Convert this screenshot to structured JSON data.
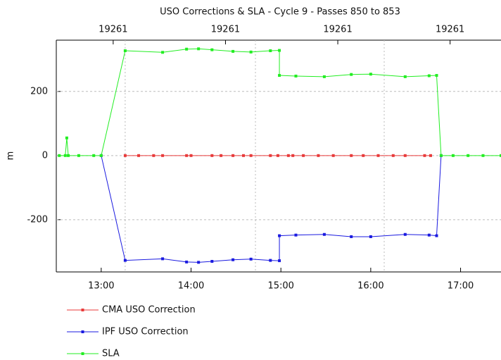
{
  "chart_data": {
    "type": "line",
    "title": "USO Corrections & SLA - Cycle 9 - Passes 850 to 853",
    "y_label": "m",
    "xlim": [
      "12:30",
      "17:27"
    ],
    "xticks": [
      "13:00",
      "14:00",
      "15:00",
      "16:00",
      "17:00"
    ],
    "x2ticks": [
      {
        "value": "13:08",
        "label": "19261"
      },
      {
        "value": "14:23",
        "label": "19261"
      },
      {
        "value": "15:38",
        "label": "19261"
      },
      {
        "value": "16:53",
        "label": "19261"
      }
    ],
    "xgrid": [
      "13:16",
      "14:43",
      "16:09"
    ],
    "ylim": [
      -363,
      360
    ],
    "yticks": [
      -200,
      0,
      200
    ],
    "grid": true,
    "legend": "bottom",
    "series": [
      {
        "name": "CMA USO Correction",
        "color": "#e83a3a",
        "x": [
          "13:16",
          "13:25",
          "13:35",
          "13:41",
          "13:57",
          "14:00",
          "14:14",
          "14:20",
          "14:28",
          "14:35",
          "14:40",
          "14:53",
          "14:58",
          "15:05",
          "15:08",
          "15:15",
          "15:25",
          "15:35",
          "15:47",
          "15:55",
          "16:05",
          "16:15",
          "16:23",
          "16:36",
          "16:40"
        ],
        "values": [
          0,
          0,
          0,
          0,
          0,
          0,
          0,
          0,
          0,
          0,
          0,
          0,
          0,
          0,
          0,
          0,
          0,
          0,
          0,
          0,
          0,
          0,
          0,
          0,
          0
        ]
      },
      {
        "name": "IPF USO Correction",
        "color": "#1a1ae0",
        "x": [
          "13:00",
          "13:16",
          "13:41",
          "13:57",
          "14:05",
          "14:14",
          "14:28",
          "14:40",
          "14:53",
          "14:59",
          "14:59",
          "15:10",
          "15:29",
          "15:47",
          "16:00",
          "16:23",
          "16:39",
          "16:44",
          "16:47"
        ],
        "values": [
          0,
          -327,
          -322,
          -332,
          -333,
          -330,
          -325,
          -323,
          -327,
          -328,
          -250,
          -248,
          -246,
          -253,
          -253,
          -246,
          -248,
          -250,
          0
        ]
      },
      {
        "name": "SLA",
        "color": "#22ee22",
        "x": [
          "12:32",
          "12:36",
          "12:37",
          "12:38",
          "12:45",
          "12:55",
          "13:00",
          "13:16",
          "13:41",
          "13:57",
          "14:05",
          "14:14",
          "14:28",
          "14:40",
          "14:53",
          "14:59",
          "14:59",
          "15:10",
          "15:29",
          "15:47",
          "16:00",
          "16:23",
          "16:39",
          "16:44",
          "16:47",
          "16:55",
          "17:05",
          "17:15",
          "17:27"
        ],
        "values": [
          0,
          0,
          55,
          0,
          0,
          0,
          0,
          327,
          322,
          332,
          333,
          330,
          325,
          323,
          327,
          328,
          250,
          248,
          246,
          253,
          254,
          246,
          249,
          250,
          0,
          0,
          0,
          0,
          0
        ]
      }
    ]
  }
}
